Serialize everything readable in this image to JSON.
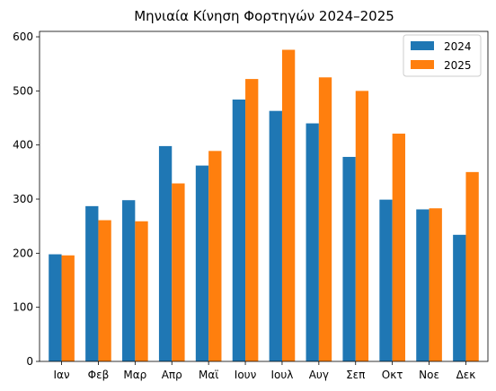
{
  "chart_data": {
    "type": "bar",
    "title": "Μηνιαία Κίνηση Φορτηγών 2024–2025",
    "xlabel": "",
    "ylabel": "",
    "categories": [
      "Ιαν",
      "Φεβ",
      "Μαρ",
      "Απρ",
      "Μαϊ",
      "Ιουν",
      "Ιουλ",
      "Αυγ",
      "Σεπ",
      "Οκτ",
      "Νοε",
      "Δεκ"
    ],
    "series": [
      {
        "name": "2024",
        "color": "#1f77b4",
        "values": [
          198,
          287,
          298,
          398,
          362,
          484,
          463,
          440,
          378,
          299,
          281,
          234
        ]
      },
      {
        "name": "2025",
        "color": "#ff7f0e",
        "values": [
          196,
          261,
          259,
          329,
          389,
          522,
          576,
          525,
          500,
          421,
          283,
          350
        ]
      }
    ],
    "ylim": [
      0,
      610
    ],
    "yticks": [
      0,
      100,
      200,
      300,
      400,
      500,
      600
    ],
    "grid": false,
    "legend_position": "top-right"
  }
}
